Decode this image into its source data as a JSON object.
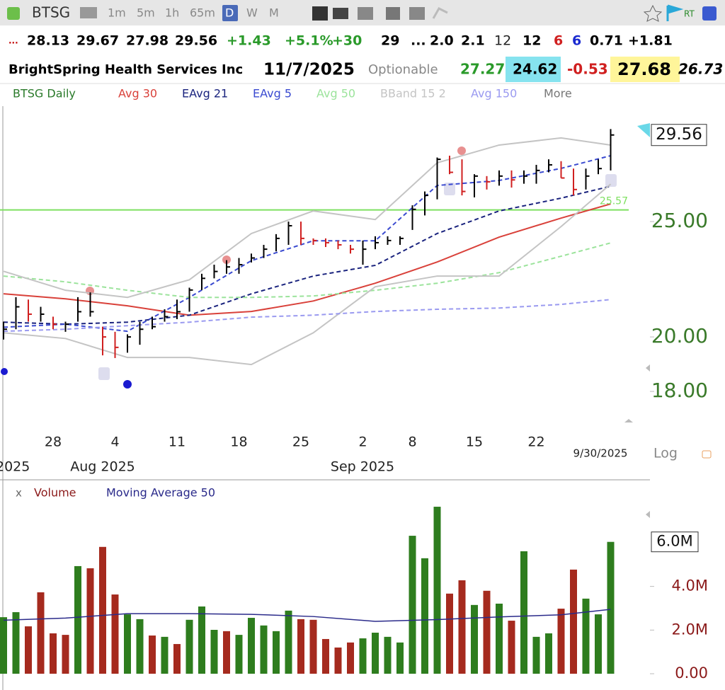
{
  "toolbar": {
    "symbol": "BTSG",
    "intervals": [
      "1m",
      "5m",
      "1h",
      "65m",
      "D",
      "W",
      "M"
    ],
    "realtime": "RT"
  },
  "quote": {
    "row1": [
      {
        "text": "...",
        "color": "#c00000"
      },
      {
        "text": "28.13",
        "color": "#000000"
      },
      {
        "text": "29.67",
        "color": "#000000"
      },
      {
        "text": "27.98",
        "color": "#000000"
      },
      {
        "text": "29.56",
        "color": "#000000"
      },
      {
        "text": "+1.43",
        "color": "#2a9a2a"
      },
      {
        "text": "+5.1%",
        "color": "#2a9a2a"
      },
      {
        "text": "+30",
        "color": "#2a9a2a"
      },
      {
        "text": "29",
        "color": "#000000"
      },
      {
        "text": "...",
        "color": "#000000"
      },
      {
        "text": "2.0",
        "color": "#000000"
      },
      {
        "text": "2.1",
        "color": "#000000"
      },
      {
        "text": "12",
        "color": "#222222"
      },
      {
        "text": "12",
        "color": "#000000"
      },
      {
        "text": "6",
        "color": "#d02020"
      },
      {
        "text": "6",
        "color": "#1a2ad0"
      },
      {
        "text": "0.71",
        "color": "#000000"
      },
      {
        "text": "+1.81",
        "color": "#000000"
      }
    ],
    "row2": [
      {
        "text": "BrightSpring Health Services Inc",
        "color": "#000000"
      },
      {
        "text": "11/7/2025",
        "color": "#000000"
      },
      {
        "text": "Optionable",
        "color": "#888888"
      },
      {
        "text": "27.27",
        "color": "#2a9a2a"
      },
      {
        "text": "24.62",
        "color": "#000000",
        "background": "#86e3ef"
      },
      {
        "text": "-0.53",
        "color": "#d02020"
      },
      {
        "text": "27.68",
        "color": "#000000",
        "background": "#fff59a"
      },
      {
        "text": "26.73",
        "color": "#000000"
      }
    ]
  },
  "more": "More",
  "chart_data": [
    {
      "type": "ohlc",
      "title": "BTSG Daily",
      "log_scale": true,
      "categories": [
        null,
        null,
        null,
        null,
        "28",
        null,
        null,
        null,
        null,
        "4",
        null,
        null,
        null,
        null,
        "11",
        null,
        null,
        null,
        null,
        "18",
        null,
        null,
        null,
        null,
        "25",
        null,
        null,
        null,
        null,
        "2",
        null,
        null,
        null,
        "8",
        null,
        null,
        null,
        null,
        "15",
        null,
        null,
        null,
        null,
        "22",
        null,
        null,
        null,
        null,
        null,
        null
      ],
      "group_labels": [
        "2025",
        "Aug 2025",
        "Sep 2025"
      ],
      "date_label": "9/30/2025",
      "scale_label": "Log",
      "high": [
        20.6,
        21.6,
        21.5,
        21.2,
        20.8,
        20.6,
        21.6,
        21.8,
        20.4,
        20.2,
        20.1,
        20.6,
        20.8,
        21.1,
        21.5,
        22.0,
        22.6,
        23.0,
        23.2,
        23.3,
        23.5,
        23.9,
        24.4,
        25.0,
        25.0,
        24.2,
        24.2,
        24.1,
        23.9,
        24.1,
        24.3,
        24.3,
        24.3,
        25.8,
        26.5,
        28.3,
        28.4,
        28.2,
        27.4,
        27.3,
        27.6,
        27.6,
        27.6,
        27.9,
        28.2,
        28.1,
        27.7,
        27.7,
        28.2,
        29.9
      ],
      "low": [
        19.9,
        20.3,
        20.6,
        20.6,
        20.3,
        20.2,
        20.6,
        20.8,
        19.3,
        19.2,
        19.4,
        19.7,
        20.3,
        20.6,
        20.7,
        21.0,
        21.9,
        22.4,
        22.6,
        22.6,
        23.1,
        23.3,
        23.6,
        23.9,
        23.9,
        23.9,
        23.8,
        23.7,
        23.5,
        23.0,
        23.7,
        23.9,
        23.9,
        24.6,
        25.3,
        26.1,
        27.4,
        26.3,
        26.2,
        26.6,
        26.8,
        26.7,
        26.9,
        26.9,
        27.5,
        27.2,
        26.3,
        26.6,
        27.4,
        27.6
      ],
      "close": [
        20.3,
        21.2,
        20.9,
        20.9,
        20.5,
        20.5,
        21.0,
        21.0,
        20.0,
        19.6,
        20.0,
        20.3,
        20.4,
        20.8,
        21.0,
        21.9,
        22.4,
        22.7,
        22.9,
        23.0,
        23.3,
        23.7,
        24.2,
        24.8,
        24.2,
        24.1,
        24.0,
        23.9,
        23.7,
        23.7,
        24.0,
        24.1,
        24.2,
        25.6,
        26.3,
        28.2,
        27.5,
        26.5,
        27.3,
        27.0,
        27.3,
        27.1,
        27.3,
        27.6,
        27.9,
        27.2,
        26.6,
        27.3,
        27.7,
        29.56
      ],
      "up_color": "#000000",
      "down_color": "#d02020",
      "overlays": [
        {
          "name": "Avg 30",
          "color": "#d9413a",
          "style": "solid",
          "x": [
            0,
            5,
            10,
            15,
            20,
            25,
            30,
            35,
            40,
            45,
            49
          ],
          "values": [
            21.74,
            21.53,
            21.24,
            20.86,
            21.01,
            21.44,
            22.19,
            23.12,
            24.26,
            25.17,
            25.87
          ]
        },
        {
          "name": "EAvg 21",
          "color": "#1a237e",
          "style": "dashed",
          "x": [
            0,
            5,
            10,
            15,
            20,
            25,
            30,
            35,
            40,
            45,
            49
          ],
          "values": [
            20.58,
            20.5,
            20.58,
            20.86,
            21.74,
            22.5,
            22.97,
            24.43,
            25.52,
            26.16,
            26.77
          ]
        },
        {
          "name": "EAvg 5",
          "color": "#3a4ad0",
          "style": "dashed",
          "x": [
            0,
            5,
            10,
            15,
            20,
            25,
            30,
            35,
            40,
            45,
            49
          ],
          "values": [
            20.38,
            20.5,
            20.22,
            21.59,
            23.18,
            24.09,
            24.09,
            26.81,
            27.07,
            27.71,
            28.4
          ]
        },
        {
          "name": "Avg 50",
          "color": "#9be39b",
          "style": "dashed",
          "x": [
            0,
            5,
            10,
            15,
            20,
            25,
            30,
            35,
            40,
            45,
            49
          ],
          "values": [
            22.5,
            22.25,
            21.89,
            21.59,
            21.59,
            21.65,
            21.89,
            22.19,
            22.65,
            23.38,
            23.99
          ]
        },
        {
          "name": "BBand 15 2",
          "color": "#c4c4c4",
          "style": "solid",
          "x": [
            0,
            5,
            10,
            15,
            20,
            25,
            30,
            35,
            40,
            45,
            49
          ],
          "values": [
            22.71,
            21.89,
            21.59,
            22.34,
            24.43,
            25.52,
            25.1,
            28.01,
            28.99,
            29.39,
            28.99
          ],
          "lower": [
            20.16,
            19.94,
            19.22,
            19.22,
            18.96,
            20.16,
            22.04,
            22.5,
            22.5,
            24.76,
            26.88
          ]
        },
        {
          "name": "Avg 150",
          "color": "#9a9af0",
          "style": "dashed",
          "x": [
            0,
            5,
            10,
            15,
            20,
            25,
            30,
            35,
            40,
            45,
            49
          ],
          "values": [
            20.22,
            20.3,
            20.44,
            20.58,
            20.78,
            20.86,
            21.01,
            21.1,
            21.15,
            21.3,
            21.5
          ]
        }
      ],
      "level": {
        "value": 25.57,
        "color": "#7ee060"
      },
      "ylim": [
        16.88,
        30.83
      ],
      "yticks": [
        {
          "value": 18,
          "label": "18.00"
        },
        {
          "value": 20,
          "label": "20.00"
        },
        {
          "value": 25,
          "label": "25.00"
        }
      ]
    },
    {
      "type": "bar",
      "series": [
        {
          "name": "Volume",
          "color": "#8b1a1a",
          "values": [
            2590000,
            2820000,
            2170000,
            3730000,
            1850000,
            1780000,
            4930000,
            4830000,
            5810000,
            3630000,
            2720000,
            2500000,
            1750000,
            1690000,
            1360000,
            2470000,
            3080000,
            2010000,
            1950000,
            1780000,
            2560000,
            2210000,
            1950000,
            2890000,
            2500000,
            2470000,
            1590000,
            1200000,
            1430000,
            1620000,
            1880000,
            1690000,
            1430000,
            6320000,
            5290000,
            7650000,
            3670000,
            4280000,
            3150000,
            3800000,
            3210000,
            2430000,
            5610000,
            1690000,
            1850000,
            2980000,
            4770000,
            3440000,
            2720000,
            6040000
          ],
          "colors": [
            "#2e7d1e",
            "#2e7d1e",
            "#a52a1e",
            "#a52a1e",
            "#a52a1e",
            "#a52a1e",
            "#2e7d1e",
            "#a52a1e",
            "#a52a1e",
            "#a52a1e",
            "#2e7d1e",
            "#2e7d1e",
            "#a52a1e",
            "#2e7d1e",
            "#a52a1e",
            "#2e7d1e",
            "#2e7d1e",
            "#2e7d1e",
            "#a52a1e",
            "#2e7d1e",
            "#2e7d1e",
            "#2e7d1e",
            "#2e7d1e",
            "#2e7d1e",
            "#a52a1e",
            "#a52a1e",
            "#a52a1e",
            "#a52a1e",
            "#a52a1e",
            "#2e7d1e",
            "#2e7d1e",
            "#2e7d1e",
            "#2e7d1e",
            "#2e7d1e",
            "#2e7d1e",
            "#2e7d1e",
            "#a52a1e",
            "#a52a1e",
            "#2e7d1e",
            "#a52a1e",
            "#2e7d1e",
            "#a52a1e",
            "#2e7d1e",
            "#2e7d1e",
            "#2e7d1e",
            "#a52a1e",
            "#a52a1e",
            "#2e7d1e",
            "#2e7d1e",
            "#2e7d1e"
          ]
        }
      ],
      "average": {
        "name": "Moving Average 50",
        "color": "#2a2a8a",
        "x": [
          0,
          5,
          10,
          15,
          20,
          25,
          30,
          35,
          40,
          45,
          49
        ],
        "values": [
          2450000,
          2550000,
          2750000,
          2750000,
          2720000,
          2620000,
          2400000,
          2480000,
          2600000,
          2700000,
          2950000
        ]
      },
      "last_value_label": "6.0M",
      "ylim": [
        0,
        8170000
      ],
      "yticks": [
        {
          "value": 0,
          "label": "0.00"
        },
        {
          "value": 2000000,
          "label": "2.0M"
        },
        {
          "value": 4000000,
          "label": "4.0M"
        }
      ]
    }
  ]
}
